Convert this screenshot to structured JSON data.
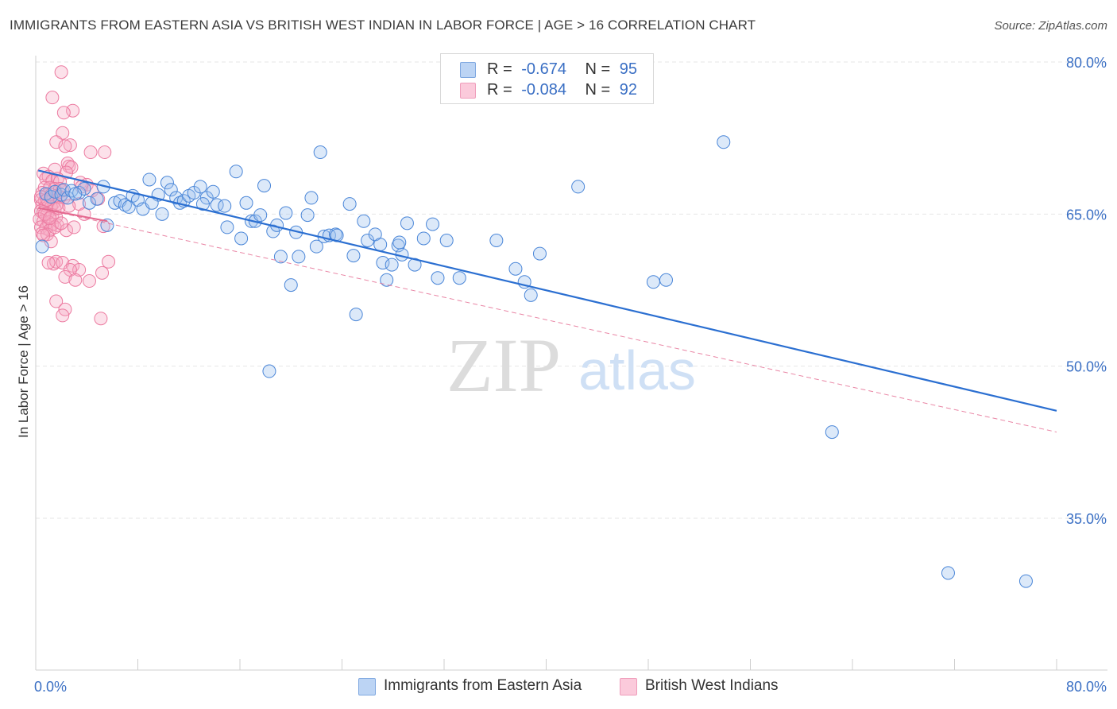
{
  "title": "IMMIGRANTS FROM EASTERN ASIA VS BRITISH WEST INDIAN IN LABOR FORCE | AGE > 16 CORRELATION CHART",
  "source": "Source: ZipAtlas.com",
  "watermark": {
    "zip": "ZIP",
    "atlas": "atlas"
  },
  "legend": {
    "r_label": "R =",
    "n_label": "N =",
    "items": [
      {
        "r": "-0.674",
        "n": "95",
        "color": "#9bbfee"
      },
      {
        "r": "-0.084",
        "n": "92",
        "color": "#f6a8c4"
      }
    ]
  },
  "bottom_legend": [
    "Immigrants from Eastern Asia",
    "British West Indians"
  ],
  "chart_data": {
    "type": "scatter",
    "xlabel": "",
    "ylabel": "In Labor Force | Age > 16",
    "xlim": [
      0,
      80
    ],
    "ylim": [
      20,
      82
    ],
    "x_tick_labels": [
      "0.0%",
      "80.0%"
    ],
    "y_ticks": [
      35,
      50,
      65,
      80
    ],
    "y_tick_labels": [
      "35.0%",
      "50.0%",
      "65.0%",
      "80.0%"
    ],
    "grid": true,
    "legend_position": "top-center",
    "colors": {
      "blue": "#4a86d8",
      "pink": "#ec7aa0",
      "blue_line": "#2b6fd1",
      "pink_line": "#e4688f"
    },
    "series": [
      {
        "name": "Immigrants from Eastern Asia",
        "r": -0.674,
        "n": 95,
        "trend": {
          "x": [
            0.2,
            80
          ],
          "y": [
            69.3,
            45.6
          ]
        },
        "points": [
          [
            0.5,
            61.8
          ],
          [
            0.8,
            67.0
          ],
          [
            1.2,
            66.7
          ],
          [
            1.5,
            67.2
          ],
          [
            2.0,
            66.9
          ],
          [
            2.2,
            67.4
          ],
          [
            2.5,
            66.6
          ],
          [
            2.8,
            67.3
          ],
          [
            3.4,
            67.1
          ],
          [
            3.8,
            67.5
          ],
          [
            4.2,
            66.1
          ],
          [
            4.8,
            66.5
          ],
          [
            5.3,
            67.7
          ],
          [
            5.6,
            63.9
          ],
          [
            6.2,
            66.1
          ],
          [
            6.6,
            66.3
          ],
          [
            7.0,
            65.9
          ],
          [
            7.3,
            65.7
          ],
          [
            7.6,
            66.8
          ],
          [
            8.0,
            66.4
          ],
          [
            8.4,
            65.5
          ],
          [
            8.9,
            68.4
          ],
          [
            9.6,
            66.9
          ],
          [
            9.9,
            65.0
          ],
          [
            10.3,
            68.1
          ],
          [
            10.6,
            67.4
          ],
          [
            11.0,
            66.6
          ],
          [
            11.3,
            66.1
          ],
          [
            11.6,
            66.3
          ],
          [
            12.0,
            66.8
          ],
          [
            12.4,
            67.1
          ],
          [
            12.9,
            67.7
          ],
          [
            13.4,
            66.6
          ],
          [
            13.9,
            67.2
          ],
          [
            14.2,
            65.9
          ],
          [
            14.8,
            65.8
          ],
          [
            15.0,
            63.7
          ],
          [
            15.7,
            69.2
          ],
          [
            16.1,
            62.6
          ],
          [
            16.5,
            66.1
          ],
          [
            16.9,
            64.3
          ],
          [
            17.2,
            64.3
          ],
          [
            17.6,
            64.9
          ],
          [
            17.9,
            67.8
          ],
          [
            18.6,
            63.3
          ],
          [
            18.9,
            63.9
          ],
          [
            19.2,
            60.8
          ],
          [
            19.6,
            65.1
          ],
          [
            20.0,
            58.0
          ],
          [
            20.4,
            63.2
          ],
          [
            20.6,
            60.8
          ],
          [
            21.3,
            64.9
          ],
          [
            21.6,
            66.6
          ],
          [
            22.0,
            61.8
          ],
          [
            22.3,
            71.1
          ],
          [
            22.6,
            62.8
          ],
          [
            23.0,
            62.9
          ],
          [
            23.5,
            63.0
          ],
          [
            24.6,
            66.0
          ],
          [
            24.9,
            60.9
          ],
          [
            25.1,
            55.1
          ],
          [
            25.7,
            64.3
          ],
          [
            26.0,
            62.4
          ],
          [
            26.6,
            63.0
          ],
          [
            27.0,
            62.0
          ],
          [
            27.2,
            60.2
          ],
          [
            27.5,
            58.5
          ],
          [
            27.9,
            60.0
          ],
          [
            28.4,
            61.9
          ],
          [
            28.7,
            61.0
          ],
          [
            29.1,
            64.1
          ],
          [
            29.7,
            60.0
          ],
          [
            30.4,
            62.6
          ],
          [
            31.1,
            64.0
          ],
          [
            31.5,
            58.7
          ],
          [
            32.2,
            62.4
          ],
          [
            33.2,
            58.7
          ],
          [
            36.1,
            62.4
          ],
          [
            37.6,
            59.6
          ],
          [
            38.3,
            58.3
          ],
          [
            38.8,
            57.0
          ],
          [
            39.5,
            61.1
          ],
          [
            42.5,
            67.7
          ],
          [
            48.4,
            58.3
          ],
          [
            49.4,
            58.5
          ],
          [
            53.9,
            72.1
          ],
          [
            18.3,
            49.5
          ],
          [
            62.4,
            43.5
          ],
          [
            71.5,
            29.6
          ],
          [
            77.6,
            28.8
          ],
          [
            3.1,
            67.0
          ],
          [
            9.1,
            66.1
          ],
          [
            13.1,
            66.0
          ],
          [
            23.6,
            62.9
          ],
          [
            28.5,
            62.2
          ]
        ]
      },
      {
        "name": "British West Indians",
        "r": -0.084,
        "n": 92,
        "trend": {
          "x": [
            0.2,
            5.6
          ],
          "y": [
            65.6,
            64.3
          ]
        },
        "trend_dashed": {
          "x": [
            0.2,
            80
          ],
          "y": [
            65.6,
            43.5
          ]
        },
        "points": [
          [
            2.0,
            79.0
          ],
          [
            1.3,
            76.5
          ],
          [
            2.9,
            75.2
          ],
          [
            2.2,
            75.0
          ],
          [
            2.1,
            73.0
          ],
          [
            1.6,
            72.1
          ],
          [
            2.7,
            71.8
          ],
          [
            2.3,
            71.7
          ],
          [
            4.3,
            71.1
          ],
          [
            5.4,
            71.1
          ],
          [
            2.5,
            70.0
          ],
          [
            2.6,
            69.7
          ],
          [
            2.8,
            69.6
          ],
          [
            1.5,
            69.4
          ],
          [
            0.6,
            69.0
          ],
          [
            1.0,
            68.7
          ],
          [
            2.4,
            69.1
          ],
          [
            0.8,
            68.5
          ],
          [
            1.3,
            68.3
          ],
          [
            1.7,
            68.5
          ],
          [
            1.9,
            68.2
          ],
          [
            3.5,
            68.1
          ],
          [
            4.0,
            67.9
          ],
          [
            3.6,
            67.7
          ],
          [
            0.7,
            67.6
          ],
          [
            1.1,
            67.6
          ],
          [
            1.5,
            67.5
          ],
          [
            1.9,
            67.5
          ],
          [
            2.1,
            67.3
          ],
          [
            4.4,
            67.3
          ],
          [
            0.5,
            67.1
          ],
          [
            0.9,
            66.9
          ],
          [
            1.2,
            66.9
          ],
          [
            1.6,
            66.8
          ],
          [
            1.9,
            66.7
          ],
          [
            2.2,
            66.6
          ],
          [
            0.4,
            66.4
          ],
          [
            0.7,
            66.3
          ],
          [
            1.0,
            66.2
          ],
          [
            1.4,
            66.1
          ],
          [
            1.7,
            66.0
          ],
          [
            0.5,
            65.9
          ],
          [
            0.8,
            65.8
          ],
          [
            1.2,
            65.7
          ],
          [
            1.5,
            65.5
          ],
          [
            0.4,
            65.3
          ],
          [
            0.6,
            65.2
          ],
          [
            0.9,
            65.0
          ],
          [
            1.3,
            64.9
          ],
          [
            1.6,
            64.7
          ],
          [
            0.3,
            64.5
          ],
          [
            0.6,
            64.3
          ],
          [
            1.0,
            64.2
          ],
          [
            1.3,
            64.0
          ],
          [
            1.7,
            63.9
          ],
          [
            0.4,
            63.7
          ],
          [
            0.8,
            63.6
          ],
          [
            1.1,
            63.4
          ],
          [
            0.5,
            63.1
          ],
          [
            0.9,
            63.0
          ],
          [
            1.5,
            63.7
          ],
          [
            2.4,
            63.4
          ],
          [
            3.4,
            66.0
          ],
          [
            5.3,
            63.8
          ],
          [
            4.9,
            66.5
          ],
          [
            1.2,
            62.3
          ],
          [
            1.4,
            60.1
          ],
          [
            1.6,
            60.3
          ],
          [
            1.0,
            60.2
          ],
          [
            2.1,
            60.2
          ],
          [
            2.9,
            59.9
          ],
          [
            3.4,
            59.5
          ],
          [
            2.7,
            59.5
          ],
          [
            2.3,
            58.8
          ],
          [
            3.1,
            58.5
          ],
          [
            4.2,
            58.4
          ],
          [
            5.2,
            59.2
          ],
          [
            5.7,
            60.3
          ],
          [
            1.6,
            56.4
          ],
          [
            2.3,
            55.6
          ],
          [
            2.1,
            55.0
          ],
          [
            5.1,
            54.7
          ],
          [
            3.0,
            63.7
          ],
          [
            0.7,
            65.0
          ],
          [
            1.8,
            65.6
          ],
          [
            2.6,
            65.8
          ],
          [
            0.4,
            66.7
          ],
          [
            1.1,
            64.6
          ],
          [
            2.0,
            64.1
          ],
          [
            0.6,
            62.9
          ],
          [
            3.8,
            65.0
          ],
          [
            0.9,
            66.4
          ]
        ]
      }
    ]
  }
}
